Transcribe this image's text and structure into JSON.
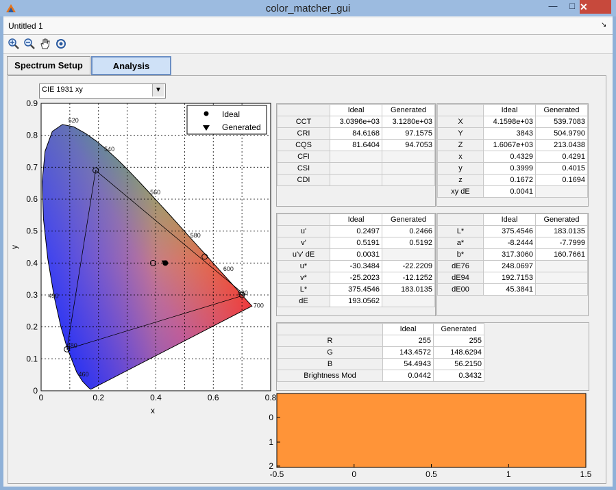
{
  "window": {
    "title": "color_matcher_gui",
    "minimize": "—",
    "maximize": "□",
    "close": "✕"
  },
  "menu": {
    "file_label": "Untitled 1",
    "arrow": "↘"
  },
  "toolbar": {
    "icons": [
      "zoom-in-icon",
      "zoom-out-icon",
      "pan-icon",
      "rotate-icon"
    ]
  },
  "tabs": [
    {
      "label": "Spectrum Setup"
    },
    {
      "label": "Analysis"
    }
  ],
  "plot_selector": {
    "value": "CIE 1931 xy"
  },
  "chromaticity_plot": {
    "xlabel": "x",
    "ylabel": "y",
    "x_ticks": [
      "0",
      "0.2",
      "0.4",
      "0.6",
      "0.8"
    ],
    "y_ticks": [
      "0",
      "0.1",
      "0.2",
      "0.3",
      "0.4",
      "0.5",
      "0.6",
      "0.7",
      "0.8",
      "0.9"
    ],
    "legend": [
      {
        "label": "Ideal",
        "marker": "circle"
      },
      {
        "label": "Generated",
        "marker": "triangle"
      }
    ],
    "wavelength_labels": [
      "520",
      "540",
      "560",
      "580",
      "600",
      "620",
      "700",
      "490",
      "480",
      "460"
    ]
  },
  "chart_data": {
    "type": "scatter",
    "xlabel": "x",
    "ylabel": "y",
    "xlim": [
      0,
      0.8
    ],
    "ylim": [
      0,
      0.9
    ],
    "series": [
      {
        "name": "Ideal",
        "x": [
          0.4329
        ],
        "y": [
          0.3999
        ]
      },
      {
        "name": "Generated",
        "x": [
          0.4291
        ],
        "y": [
          0.4015
        ]
      }
    ],
    "triangle_vertices": [
      [
        0.19,
        0.69
      ],
      [
        0.09,
        0.13
      ],
      [
        0.71,
        0.3
      ]
    ],
    "circle_markers": [
      [
        0.19,
        0.69
      ],
      [
        0.09,
        0.13
      ],
      [
        0.57,
        0.42
      ],
      [
        0.7,
        0.3
      ],
      [
        0.39,
        0.4
      ]
    ]
  },
  "table_cri": {
    "headers": [
      "",
      "Ideal",
      "Generated"
    ],
    "rows": [
      [
        "CCT",
        "3.0396e+03",
        "3.1280e+03"
      ],
      [
        "CRI",
        "84.6168",
        "97.1575"
      ],
      [
        "CQS",
        "81.6404",
        "94.7053"
      ],
      [
        "CFI",
        "",
        ""
      ],
      [
        "CSI",
        "",
        ""
      ],
      [
        "CDI",
        "",
        ""
      ]
    ]
  },
  "table_xyz": {
    "headers": [
      "",
      "Ideal",
      "Generated"
    ],
    "rows": [
      [
        "X",
        "4.1598e+03",
        "539.7083"
      ],
      [
        "Y",
        "3843",
        "504.9790"
      ],
      [
        "Z",
        "1.6067e+03",
        "213.0438"
      ],
      [
        "x",
        "0.4329",
        "0.4291"
      ],
      [
        "y",
        "0.3999",
        "0.4015"
      ],
      [
        "z",
        "0.1672",
        "0.1694"
      ],
      [
        "xy dE",
        "0.0041",
        ""
      ]
    ]
  },
  "table_uv": {
    "headers": [
      "",
      "Ideal",
      "Generated"
    ],
    "rows": [
      [
        "u'",
        "0.2497",
        "0.2466"
      ],
      [
        "v'",
        "0.5191",
        "0.5192"
      ],
      [
        "u'v' dE",
        "0.0031",
        ""
      ],
      [
        "u*",
        "-30.3484",
        "-22.2209"
      ],
      [
        "v*",
        "-25.2023",
        "-12.1252"
      ],
      [
        "L*",
        "375.4546",
        "183.0135"
      ],
      [
        "dE",
        "193.0562",
        ""
      ]
    ]
  },
  "table_lab": {
    "headers": [
      "",
      "Ideal",
      "Generated"
    ],
    "rows": [
      [
        "L*",
        "375.4546",
        "183.0135"
      ],
      [
        "a*",
        "-8.2444",
        "-7.7999"
      ],
      [
        "b*",
        "317.3060",
        "160.7661"
      ],
      [
        "dE76",
        "248.0697",
        ""
      ],
      [
        "dE94",
        "192.7153",
        ""
      ],
      [
        "dE00",
        "45.3841",
        ""
      ]
    ]
  },
  "table_rgb": {
    "headers": [
      "",
      "Ideal",
      "Generated"
    ],
    "rows": [
      [
        "R",
        "255",
        "255"
      ],
      [
        "G",
        "143.4572",
        "148.6294"
      ],
      [
        "B",
        "54.4943",
        "56.2150"
      ],
      [
        "Brightness Mod",
        "0.0442",
        "0.3432"
      ]
    ]
  },
  "swatch": {
    "color": "#ff9438",
    "x_ticks": [
      "-0.5",
      "0",
      "0.5",
      "1",
      "1.5"
    ],
    "y_ticks": [
      "0",
      "1",
      "2"
    ]
  }
}
